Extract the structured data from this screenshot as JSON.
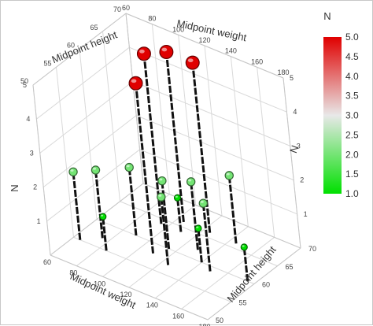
{
  "chart_data": {
    "type": "scatter",
    "subtype": "3d-needle",
    "title": "",
    "axes": {
      "weight": {
        "label": "Midpoint weight",
        "ticks": [
          "60",
          "80",
          "100",
          "120",
          "140",
          "160",
          "180"
        ],
        "range": [
          60,
          180
        ]
      },
      "height": {
        "label": "Midpoint height",
        "ticks": [
          "50",
          "55",
          "60",
          "65",
          "70"
        ],
        "range": [
          50,
          70
        ]
      },
      "n": {
        "label": "N",
        "ticks": [
          "1",
          "2",
          "3",
          "4",
          "5"
        ],
        "range": [
          0,
          5
        ]
      }
    },
    "color_scale": {
      "label": "N",
      "ticks": [
        "1.0",
        "1.5",
        "2.0",
        "2.5",
        "3.0",
        "3.5",
        "4.0",
        "4.5",
        "5.0"
      ],
      "min": 1,
      "max": 5,
      "colors": [
        "#00e000",
        "#e8e8e8",
        "#e00000"
      ]
    },
    "grid": true,
    "legend": "right",
    "points": [
      {
        "weight": 65,
        "height": 55,
        "n": 2
      },
      {
        "weight": 75,
        "height": 57,
        "n": 2
      },
      {
        "weight": 85,
        "height": 55,
        "n": 1
      },
      {
        "weight": 90,
        "height": 60,
        "n": 2
      },
      {
        "weight": 95,
        "height": 64,
        "n": 5
      },
      {
        "weight": 105,
        "height": 66,
        "n": 5
      },
      {
        "weight": 110,
        "height": 64,
        "n": 1
      },
      {
        "weight": 110,
        "height": 58,
        "n": 5
      },
      {
        "weight": 115,
        "height": 60,
        "n": 2
      },
      {
        "weight": 125,
        "height": 57,
        "n": 2
      },
      {
        "weight": 125,
        "height": 66,
        "n": 5
      },
      {
        "weight": 130,
        "height": 62,
        "n": 2
      },
      {
        "weight": 140,
        "height": 60,
        "n": 1
      },
      {
        "weight": 145,
        "height": 66,
        "n": 2
      },
      {
        "weight": 150,
        "height": 59,
        "n": 2
      },
      {
        "weight": 175,
        "height": 60,
        "n": 1
      }
    ]
  }
}
